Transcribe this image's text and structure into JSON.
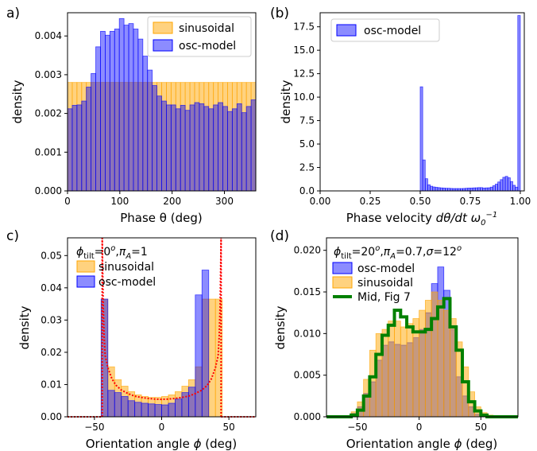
{
  "chart_data": [
    {
      "id": "a",
      "panel_label": "a)",
      "type": "bar",
      "xlabel": "Phase θ (deg)",
      "ylabel": "density",
      "xlim": [
        0,
        360
      ],
      "ylim": [
        0,
        0.0046
      ],
      "xticks": [
        "0",
        "100",
        "200",
        "300"
      ],
      "yticks": [
        "0.000",
        "0.001",
        "0.002",
        "0.003",
        "0.004"
      ],
      "legend": "top-right",
      "bin_start": 0,
      "bin_width": 9,
      "series": [
        {
          "name": "sinusoidal",
          "color": "#ffa500",
          "values": [
            0.0028,
            0.0028,
            0.0028,
            0.0028,
            0.0028,
            0.0028,
            0.0028,
            0.0028,
            0.0028,
            0.0028,
            0.0028,
            0.0028,
            0.0028,
            0.0028,
            0.0028,
            0.0028,
            0.0028,
            0.0028,
            0.0028,
            0.0028,
            0.0028,
            0.0028,
            0.0028,
            0.0028,
            0.0028,
            0.0028,
            0.0028,
            0.0028,
            0.0028,
            0.0028,
            0.0028,
            0.0028,
            0.0028,
            0.0028,
            0.0028,
            0.0028,
            0.0028,
            0.0028,
            0.0028,
            0.0028
          ]
        },
        {
          "name": "osc-model",
          "color": "#0000ff",
          "values": [
            0.00212,
            0.00221,
            0.00222,
            0.00232,
            0.00268,
            0.00303,
            0.00372,
            0.00412,
            0.00402,
            0.00412,
            0.00418,
            0.00445,
            0.00428,
            0.00432,
            0.00418,
            0.00392,
            0.00348,
            0.00312,
            0.00272,
            0.00245,
            0.00232,
            0.00222,
            0.00222,
            0.00212,
            0.00221,
            0.00208,
            0.00222,
            0.00228,
            0.00225,
            0.00218,
            0.00212,
            0.00222,
            0.00228,
            0.00218,
            0.00205,
            0.00212,
            0.00225,
            0.00202,
            0.00218,
            0.00235
          ]
        }
      ]
    },
    {
      "id": "b",
      "panel_label": "(b)",
      "type": "bar",
      "xlabel": "Phase velocity dθ/dt ω₀⁻¹",
      "ylabel": "density",
      "xlim": [
        0,
        1.02
      ],
      "ylim": [
        0,
        19.0
      ],
      "xticks": [
        "0.00",
        "0.25",
        "0.50",
        "0.75",
        "1.00"
      ],
      "yticks": [
        "0.0",
        "2.5",
        "5.0",
        "7.5",
        "10.0",
        "12.5",
        "15.0",
        "17.5"
      ],
      "legend": "top-left",
      "bin_start": 0.5,
      "bin_width": 0.0125,
      "series": [
        {
          "name": "osc-model",
          "color": "#0000ff",
          "values": [
            11.1,
            3.3,
            1.3,
            0.65,
            0.5,
            0.42,
            0.38,
            0.35,
            0.32,
            0.3,
            0.28,
            0.28,
            0.26,
            0.25,
            0.25,
            0.25,
            0.25,
            0.26,
            0.28,
            0.3,
            0.3,
            0.32,
            0.33,
            0.35,
            0.35,
            0.3,
            0.32,
            0.33,
            0.4,
            0.55,
            0.72,
            0.95,
            1.2,
            1.45,
            1.55,
            1.4,
            1.0,
            0.6,
            0.4,
            18.7
          ]
        }
      ]
    },
    {
      "id": "c",
      "panel_label": "c)",
      "type": "bar",
      "annotation": "φtilt=0ᵒ,πA=1",
      "xlabel": "Orientation angle φ (deg)",
      "ylabel": "density",
      "xlim": [
        -70,
        70
      ],
      "ylim": [
        0,
        0.0555
      ],
      "xticks": [
        "−50",
        "0",
        "50"
      ],
      "yticks": [
        "0.00",
        "0.01",
        "0.02",
        "0.03",
        "0.04",
        "0.05"
      ],
      "legend": "top-left",
      "bin_start": -45,
      "bin_width": 5,
      "series": [
        {
          "name": "sinusoidal",
          "color": "#ffa500",
          "values": [
            0.0365,
            0.0155,
            0.0115,
            0.0095,
            0.0078,
            0.0068,
            0.0063,
            0.006,
            0.006,
            0.0063,
            0.0068,
            0.0078,
            0.0095,
            0.0115,
            0.0155,
            0.0365,
            0.0365,
            0.0365
          ]
        },
        {
          "name": "osc-model",
          "color": "#0000ff",
          "values": [
            0.0365,
            0.0082,
            0.0075,
            0.0063,
            0.005,
            0.0045,
            0.0042,
            0.004,
            0.0038,
            0.0037,
            0.0042,
            0.0055,
            0.0075,
            0.0092,
            0.0378,
            0.0455,
            0.0,
            0.0
          ]
        },
        {
          "name": "",
          "color": "#ff0000",
          "style": "dotted-line",
          "x": [
            -44.2,
            -43.5,
            -42.8,
            -42,
            -40,
            -37,
            -34,
            -30,
            -25,
            -20,
            -15,
            -10,
            -5,
            0,
            5,
            10,
            15,
            20,
            25,
            30,
            34,
            37,
            40,
            42,
            42.8,
            43.5,
            44.2
          ],
          "values": [
            0.0555,
            0.035,
            0.025,
            0.019,
            0.0152,
            0.0118,
            0.0098,
            0.0083,
            0.0072,
            0.0064,
            0.006,
            0.0057,
            0.0055,
            0.0054,
            0.0055,
            0.0057,
            0.006,
            0.0064,
            0.0072,
            0.0083,
            0.0098,
            0.0118,
            0.0152,
            0.019,
            0.025,
            0.035,
            0.0555
          ]
        }
      ]
    },
    {
      "id": "d",
      "panel_label": "(d)",
      "type": "bar",
      "annotation": "φtilt=20ᵒ,πA=0.7,σ=12ᵒ",
      "xlabel": "Orientation angle φ (deg)",
      "ylabel": "density",
      "xlim": [
        -75,
        80
      ],
      "ylim": [
        0,
        0.0215
      ],
      "xticks": [
        "−50",
        "0",
        "50"
      ],
      "yticks": [
        "0.000",
        "0.005",
        "0.010",
        "0.015",
        "0.020"
      ],
      "legend": "top-left",
      "bin_start": -75,
      "bin_width": 5,
      "series": [
        {
          "name": "osc-model",
          "color": "#0000ff",
          "values": [
            0,
            0,
            0,
            0,
            0.0004,
            0.0012,
            0.0028,
            0.0042,
            0.0068,
            0.0086,
            0.009,
            0.0087,
            0.0086,
            0.0089,
            0.0095,
            0.0105,
            0.0125,
            0.016,
            0.018,
            0.0152,
            0.0105,
            0.0048,
            0.0025,
            0.0012,
            0.0003,
            0.0001,
            0.0,
            0.0,
            0.0,
            0.0,
            0.0
          ]
        },
        {
          "name": "sinusoidal",
          "color": "#ffa500",
          "values": [
            0,
            0,
            0,
            0,
            0.0006,
            0.0018,
            0.0045,
            0.008,
            0.01,
            0.0105,
            0.0115,
            0.0115,
            0.0108,
            0.0112,
            0.0118,
            0.0128,
            0.014,
            0.015,
            0.014,
            0.0128,
            0.0118,
            0.009,
            0.006,
            0.003,
            0.0012,
            0.0005,
            0.0002,
            0.0,
            0.0,
            0.0,
            0.0
          ]
        },
        {
          "name": "Mid, Fig 7",
          "color": "#008000",
          "style": "step",
          "values": [
            0,
            0,
            0,
            0,
            0.0002,
            0.0008,
            0.0025,
            0.0048,
            0.0075,
            0.0098,
            0.011,
            0.0128,
            0.012,
            0.0108,
            0.0102,
            0.0102,
            0.0105,
            0.0118,
            0.0132,
            0.0142,
            0.0108,
            0.008,
            0.0042,
            0.0018,
            0.0007,
            0.0002,
            0.0,
            0.0,
            0.0,
            0.0,
            0.0
          ]
        }
      ]
    }
  ]
}
